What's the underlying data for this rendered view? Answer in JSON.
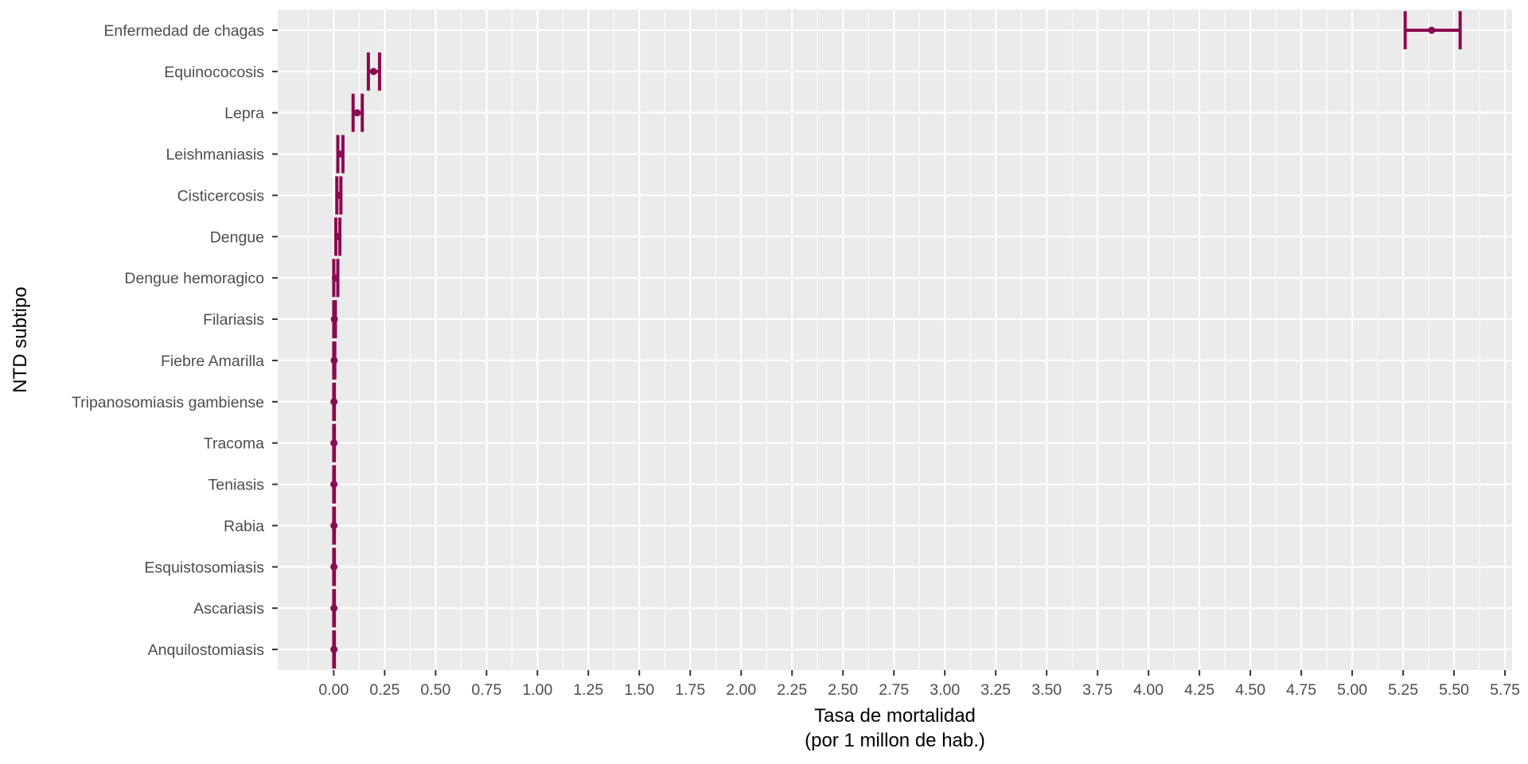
{
  "chart_data": {
    "type": "errorbar",
    "orientation": "horizontal",
    "xlabel_line1": "Tasa de mortalidad",
    "xlabel_line2": "(por 1 millon de hab.)",
    "ylabel": "NTD subtipo",
    "xlim": [
      -0.275,
      5.785
    ],
    "xticks": [
      0,
      0.25,
      0.5,
      0.75,
      1,
      1.25,
      1.5,
      1.75,
      2,
      2.25,
      2.5,
      2.75,
      3,
      3.25,
      3.5,
      3.75,
      4,
      4.25,
      4.5,
      4.75,
      5,
      5.25,
      5.5,
      5.75
    ],
    "xtick_labels": [
      "0.00",
      "0.25",
      "0.50",
      "0.75",
      "1.00",
      "1.25",
      "1.50",
      "1.75",
      "2.00",
      "2.25",
      "2.50",
      "2.75",
      "3.00",
      "3.25",
      "3.50",
      "3.75",
      "4.00",
      "4.25",
      "4.50",
      "4.75",
      "5.00",
      "5.25",
      "5.50",
      "5.75"
    ],
    "categories": [
      "Enfermedad de chagas",
      "Equinococosis",
      "Lepra",
      "Leishmaniasis",
      "Cisticercosis",
      "Dengue",
      "Dengue hemoragico",
      "Filariasis",
      "Fiebre Amarilla",
      "Tripanosomiasis gambiense",
      "Tracoma",
      "Teniasis",
      "Rabia",
      "Esquistosomiasis",
      "Ascariasis",
      "Anquilostomiasis"
    ],
    "values": [
      5.39,
      0.195,
      0.115,
      0.03,
      0.025,
      0.02,
      0.008,
      0.003,
      0.002,
      0.001,
      0.001,
      0.001,
      0.001,
      0.001,
      0.001,
      0.001
    ],
    "lower": [
      5.26,
      0.17,
      0.095,
      0.02,
      0.015,
      0.01,
      0.0,
      0.0,
      0.0,
      0.0,
      0.0,
      0.0,
      0.0,
      0.0,
      0.0,
      0.0
    ],
    "upper": [
      5.53,
      0.225,
      0.14,
      0.045,
      0.035,
      0.03,
      0.02,
      0.008,
      0.005,
      0.003,
      0.003,
      0.003,
      0.003,
      0.003,
      0.003,
      0.003
    ],
    "color": "#8b0a50",
    "panel_background": "#ebebeb",
    "grid_color": "#ffffff",
    "grid": true
  }
}
